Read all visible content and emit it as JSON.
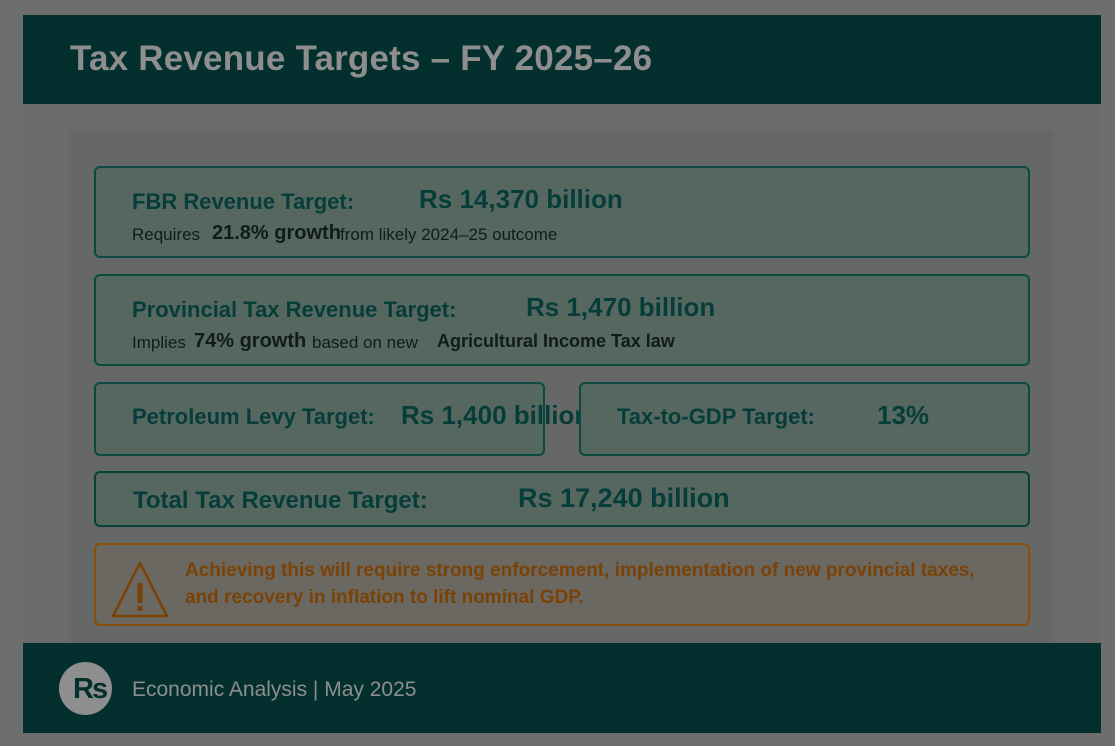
{
  "header": {
    "title": "Tax Revenue Targets – FY 2025–26"
  },
  "cards": {
    "fbr": {
      "label": "FBR Revenue Target:",
      "value": "Rs 14,370 billion",
      "sub_prefix": "Requires",
      "sub_strong": "21.8% growth",
      "sub_suffix": "from likely 2024–25 outcome"
    },
    "provincial": {
      "label": "Provincial Tax Revenue Target:",
      "value": "Rs 1,470 billion",
      "sub_prefix": "Implies",
      "sub_strong": "74% growth",
      "sub_mid": "based on new",
      "sub_bold": "Agricultural Income Tax law"
    },
    "petroleum": {
      "label": "Petroleum Levy Target:",
      "value": "Rs 1,400 billion"
    },
    "tax_gdp": {
      "label": "Tax-to-GDP Target:",
      "value": "13%"
    },
    "total": {
      "label": "Total Tax Revenue Target:",
      "value": "Rs 17,240 billion"
    }
  },
  "warning": {
    "icon": "warning-triangle-icon",
    "message": "Achieving this will require strong enforcement, implementation of new provincial taxes, and recovery in inflation to lift nominal GDP."
  },
  "footer": {
    "logo_text": "Rs",
    "text": "Economic Analysis | May 2025"
  },
  "colors": {
    "header_bg": "#03302e",
    "card_border": "#0b4a40",
    "accent_text": "#063d3a",
    "warning": "#8a4e09"
  }
}
